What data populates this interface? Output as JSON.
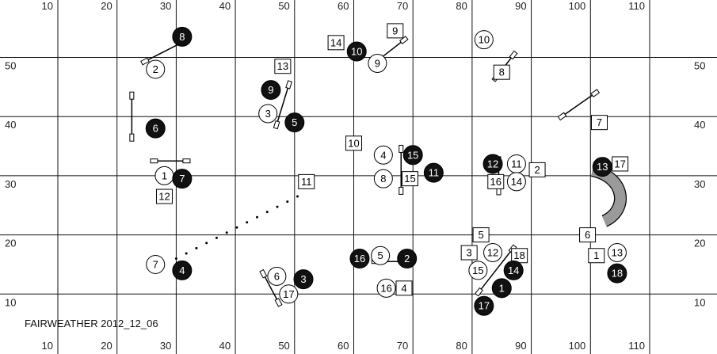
{
  "course": {
    "title": "FAIRWEATHER 2012_12_06",
    "x_ticks": [
      "10",
      "20",
      "30",
      "40",
      "50",
      "60",
      "70",
      "80",
      "90",
      "100",
      "110"
    ],
    "y_ticks": [
      "50",
      "40",
      "30",
      "20",
      "10"
    ],
    "colors": {
      "grid": "#111111",
      "black_marker": "#111111",
      "white_marker": "#ffffff",
      "tunnel": "#9a9a9a"
    },
    "obstacles": [
      {
        "type": "jump",
        "x": 28,
        "y": 51,
        "angle": -27,
        "len": 64
      },
      {
        "type": "jump",
        "x": 22.5,
        "y": 40,
        "angle": 90,
        "len": 62
      },
      {
        "type": "jump",
        "x": 48,
        "y": 42,
        "angle": 107,
        "len": 62
      },
      {
        "type": "jump",
        "x": 29,
        "y": 32.5,
        "angle": 0,
        "len": 50
      },
      {
        "type": "jump",
        "x": 66,
        "y": 51,
        "angle": -38,
        "len": 56
      },
      {
        "type": "jump",
        "x": 85.5,
        "y": 48.5,
        "angle": 128,
        "len": 45
      },
      {
        "type": "jump",
        "x": 98,
        "y": 42,
        "angle": 145,
        "len": 60
      },
      {
        "type": "jump",
        "x": 68,
        "y": 31,
        "angle": 90,
        "len": 62
      },
      {
        "type": "jump",
        "x": 84.5,
        "y": 30,
        "angle": 90,
        "len": 48
      },
      {
        "type": "jump",
        "x": 66,
        "y": 15.5,
        "angle": 0,
        "len": 44
      },
      {
        "type": "jump",
        "x": 46,
        "y": 11,
        "angle": 62,
        "len": 50
      },
      {
        "type": "jump",
        "x": 84,
        "y": 14,
        "angle": 128,
        "len": 78
      }
    ],
    "dots": {
      "from": [
        30,
        16
      ],
      "to": [
        50.5,
        26.5
      ],
      "count": 13
    },
    "tunnel": {
      "x": 101,
      "y": 23
    },
    "markers": [
      {
        "label": "8",
        "style": "black",
        "x": 31,
        "y": 53.5
      },
      {
        "label": "2",
        "style": "circle",
        "x": 26.5,
        "y": 48
      },
      {
        "label": "6",
        "style": "black",
        "x": 26.5,
        "y": 38
      },
      {
        "label": "1",
        "style": "circle",
        "x": 28,
        "y": 30
      },
      {
        "label": "7",
        "style": "black",
        "x": 31,
        "y": 29.5
      },
      {
        "label": "12",
        "style": "square",
        "x": 28,
        "y": 26.5
      },
      {
        "label": "7",
        "style": "circle",
        "x": 26.5,
        "y": 15
      },
      {
        "label": "4",
        "style": "black",
        "x": 31,
        "y": 14
      },
      {
        "label": "13",
        "style": "square",
        "x": 48,
        "y": 48.5
      },
      {
        "label": "9",
        "style": "black",
        "x": 46,
        "y": 44.5
      },
      {
        "label": "3",
        "style": "circle",
        "x": 45.5,
        "y": 40.5
      },
      {
        "label": "5",
        "style": "black",
        "x": 50,
        "y": 39
      },
      {
        "label": "11",
        "style": "square",
        "x": 52,
        "y": 29
      },
      {
        "label": "6",
        "style": "circle",
        "x": 47,
        "y": 13
      },
      {
        "label": "3",
        "style": "black",
        "x": 51.5,
        "y": 12.5
      },
      {
        "label": "17",
        "style": "circle",
        "x": 49,
        "y": 10
      },
      {
        "label": "14",
        "style": "square",
        "x": 57,
        "y": 52.5
      },
      {
        "label": "10",
        "style": "black",
        "x": 60.5,
        "y": 51
      },
      {
        "label": "9",
        "style": "square",
        "x": 67,
        "y": 54.5
      },
      {
        "label": "9",
        "style": "circle",
        "x": 64,
        "y": 49
      },
      {
        "label": "10",
        "style": "square",
        "x": 60,
        "y": 35.5
      },
      {
        "label": "4",
        "style": "circle",
        "x": 65,
        "y": 33.5
      },
      {
        "label": "15",
        "style": "black",
        "x": 70,
        "y": 33.5
      },
      {
        "label": "8",
        "style": "circle",
        "x": 65,
        "y": 29.5
      },
      {
        "label": "15",
        "style": "square",
        "x": 69.5,
        "y": 29.5
      },
      {
        "label": "11",
        "style": "black",
        "x": 73.5,
        "y": 30.5
      },
      {
        "label": "16",
        "style": "black",
        "x": 61,
        "y": 16
      },
      {
        "label": "5",
        "style": "circle",
        "x": 64.5,
        "y": 16.5
      },
      {
        "label": "2",
        "style": "black",
        "x": 69,
        "y": 16
      },
      {
        "label": "16",
        "style": "circle",
        "x": 65.5,
        "y": 11
      },
      {
        "label": "4",
        "style": "square",
        "x": 68.5,
        "y": 11
      },
      {
        "label": "10",
        "style": "circle",
        "x": 82,
        "y": 53
      },
      {
        "label": "8",
        "style": "square",
        "x": 85,
        "y": 47.5
      },
      {
        "label": "5",
        "style": "square",
        "x": 81.5,
        "y": 20
      },
      {
        "label": "3",
        "style": "square",
        "x": 79.5,
        "y": 17
      },
      {
        "label": "12",
        "style": "circle",
        "x": 83.5,
        "y": 17
      },
      {
        "label": "18",
        "style": "square",
        "x": 88,
        "y": 16.5
      },
      {
        "label": "15",
        "style": "circle",
        "x": 81,
        "y": 14
      },
      {
        "label": "14",
        "style": "black",
        "x": 87,
        "y": 14
      },
      {
        "label": "1",
        "style": "black",
        "x": 85,
        "y": 11
      },
      {
        "label": "17",
        "style": "black",
        "x": 82,
        "y": 8
      },
      {
        "label": "12",
        "style": "black",
        "x": 83.5,
        "y": 32
      },
      {
        "label": "11",
        "style": "circle",
        "x": 87.5,
        "y": 32
      },
      {
        "label": "2",
        "style": "square",
        "x": 91,
        "y": 31
      },
      {
        "label": "16",
        "style": "square",
        "x": 84,
        "y": 29
      },
      {
        "label": "14",
        "style": "circle",
        "x": 87.5,
        "y": 29
      },
      {
        "label": "7",
        "style": "square",
        "x": 101.5,
        "y": 39
      },
      {
        "label": "13",
        "style": "black",
        "x": 102,
        "y": 31.5
      },
      {
        "label": "17",
        "style": "square",
        "x": 105,
        "y": 32
      },
      {
        "label": "6",
        "style": "square",
        "x": 99.5,
        "y": 20
      },
      {
        "label": "1",
        "style": "square",
        "x": 101,
        "y": 16.5
      },
      {
        "label": "13",
        "style": "circle",
        "x": 104.5,
        "y": 17
      },
      {
        "label": "18",
        "style": "black",
        "x": 104.5,
        "y": 13.5
      }
    ]
  }
}
